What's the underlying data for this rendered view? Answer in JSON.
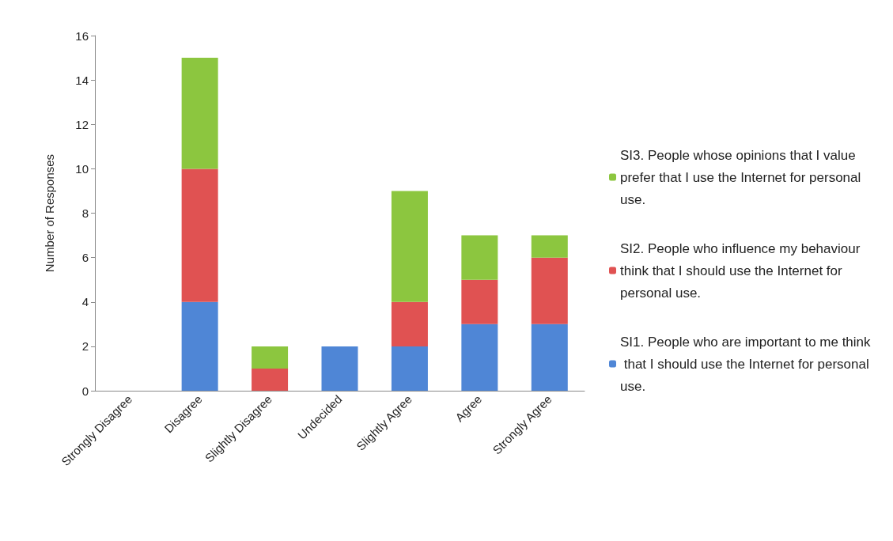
{
  "chart_data": {
    "type": "bar",
    "stacked": true,
    "ylabel": "Number of Responses",
    "categories": [
      "Strongly Disagree",
      "Disagree",
      "Slightly Disagree",
      "Undecided",
      "Slightly Agree",
      "Agree",
      "Strongly Agree"
    ],
    "series": [
      {
        "name": "SI1. People who are important to me think that I should use the Internet for personal use.",
        "color": "#4f86d6",
        "values": [
          0,
          4,
          0,
          2,
          2,
          3,
          3
        ]
      },
      {
        "name": "SI2. People who influence my behaviour think that I should use the Internet for personal use.",
        "color": "#e05252",
        "values": [
          0,
          6,
          1,
          0,
          2,
          2,
          3
        ]
      },
      {
        "name": "SI3. People whose opinions that I value prefer that I use the Internet for personal use.",
        "color": "#8cc63f",
        "values": [
          0,
          5,
          1,
          0,
          5,
          2,
          1
        ]
      }
    ],
    "ylim": [
      0,
      16
    ],
    "yticks": [
      0,
      2,
      4,
      6,
      8,
      10,
      12,
      14,
      16
    ],
    "grid": false,
    "legend": "right"
  }
}
